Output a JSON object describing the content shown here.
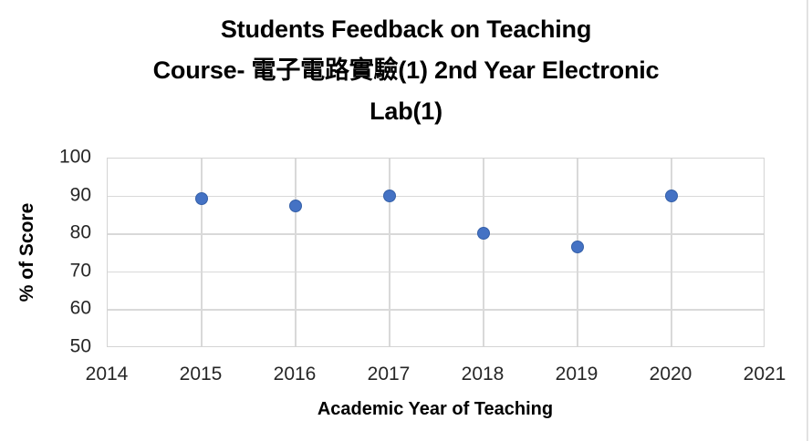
{
  "chart_data": {
    "type": "scatter",
    "title": "Students Feedback on Teaching Course- 電子電路實驗(1) 2nd Year Electronic Lab(1)",
    "title_lines": [
      "Students Feedback on Teaching",
      "Course- 電子電路實驗(1) 2nd Year Electronic",
      "Lab(1)"
    ],
    "xlabel": "Academic Year of Teaching",
    "ylabel": "% of Score",
    "points": [
      {
        "x": 2015,
        "y": 89.5
      },
      {
        "x": 2016,
        "y": 87.5
      },
      {
        "x": 2017,
        "y": 90.1
      },
      {
        "x": 2018,
        "y": 80.4
      },
      {
        "x": 2019,
        "y": 76.8
      },
      {
        "x": 2020,
        "y": 90.1
      }
    ],
    "xlim": [
      2014,
      2021
    ],
    "ylim": [
      50,
      100
    ],
    "xticks": [
      2014,
      2015,
      2016,
      2017,
      2018,
      2019,
      2020,
      2021
    ],
    "yticks": [
      50,
      60,
      70,
      80,
      90,
      100
    ],
    "grid": true,
    "legend": "none",
    "marker_color": "#4472C4",
    "gridline_color": "#d9d9d9"
  }
}
